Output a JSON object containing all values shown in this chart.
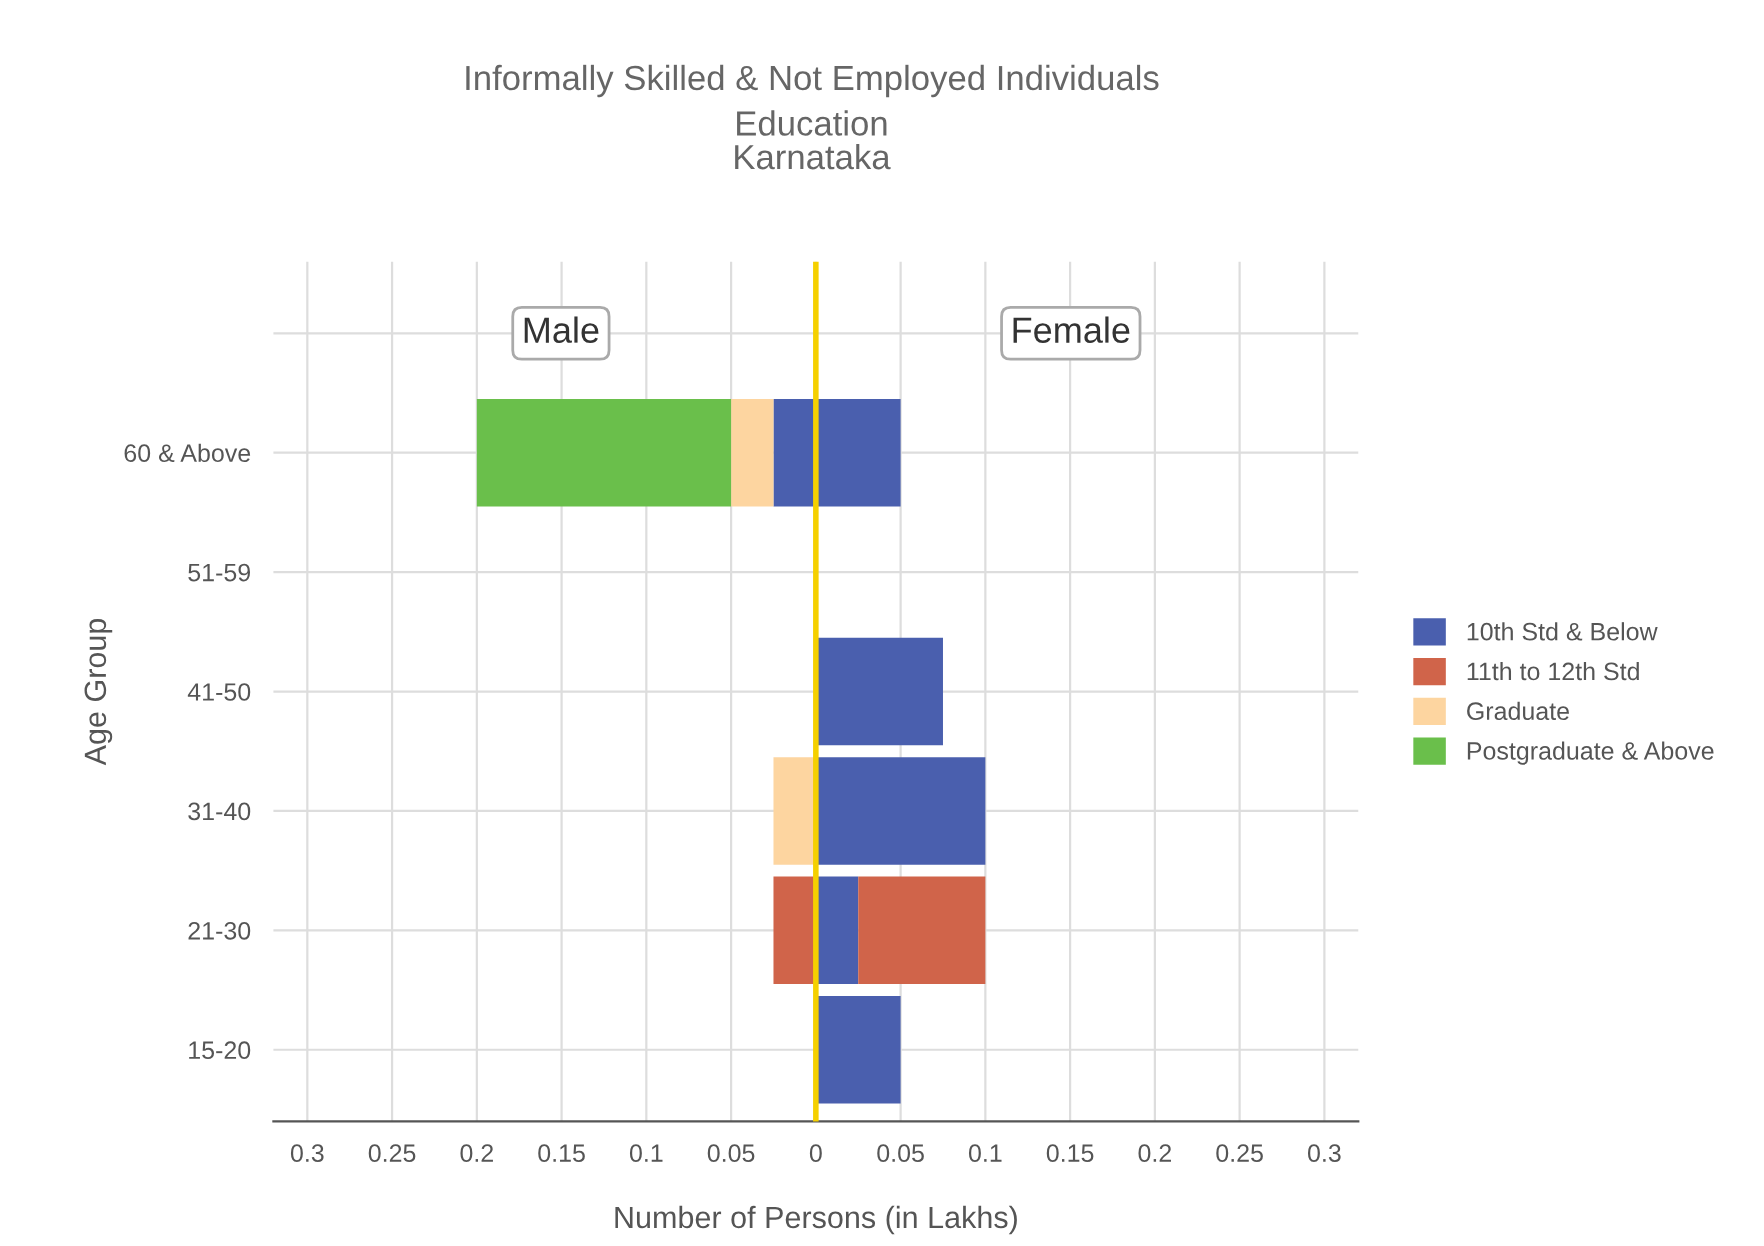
{
  "chart_data": {
    "type": "bar",
    "orientation": "horizontal",
    "stacked": true,
    "title": "Informally Skilled & Not Employed Individuals",
    "subtitle": "Education\nKarnataka",
    "xlabel": "Number of Persons (in Lakhs)",
    "ylabel": "Age Group",
    "categories": [
      null,
      "60 & Above",
      "51-59",
      "41-50",
      "31-40",
      "21-30",
      "15-20"
    ],
    "series": [
      {
        "name": "10th Std & Below",
        "color": "#4a5fae",
        "values": [
          null,
          0.05,
          null,
          0.075,
          0.1,
          0.025,
          0.05
        ]
      },
      {
        "name": "11th to 12th Std",
        "color": "#d0644a",
        "values": [
          null,
          null,
          null,
          null,
          null,
          0.075,
          null
        ]
      },
      {
        "color": "#4a5fae",
        "values": [
          null,
          -0.025,
          null,
          null,
          null,
          null,
          null
        ]
      },
      {
        "color": "#d0644a",
        "values": [
          null,
          null,
          null,
          null,
          null,
          -0.025,
          null
        ]
      },
      {
        "name": "Graduate",
        "color": "#fdd5a0",
        "values": [
          null,
          -0.025,
          null,
          null,
          -0.025,
          null,
          null
        ]
      },
      {
        "name": "Postgraduate & Above",
        "color": "#6abf4b",
        "values": [
          null,
          -0.15,
          null,
          null,
          null,
          null,
          null
        ]
      }
    ],
    "xlim": [
      -0.32,
      0.32
    ],
    "xticks": [
      {
        "value": -0.3,
        "label": "0.3"
      },
      {
        "value": -0.25,
        "label": "0.25"
      },
      {
        "value": -0.2,
        "label": "0.2"
      },
      {
        "value": -0.15,
        "label": "0.15"
      },
      {
        "value": -0.1,
        "label": "0.1"
      },
      {
        "value": -0.05,
        "label": "0.05"
      },
      0,
      0.05,
      0.1,
      0.15,
      0.2,
      0.25,
      0.3
    ],
    "ref_lines": [
      {
        "axis": "x",
        "value": 0,
        "color": "#f5d000"
      }
    ],
    "annotations": [
      "Male",
      "Female"
    ],
    "grid": true,
    "legend": "right"
  }
}
